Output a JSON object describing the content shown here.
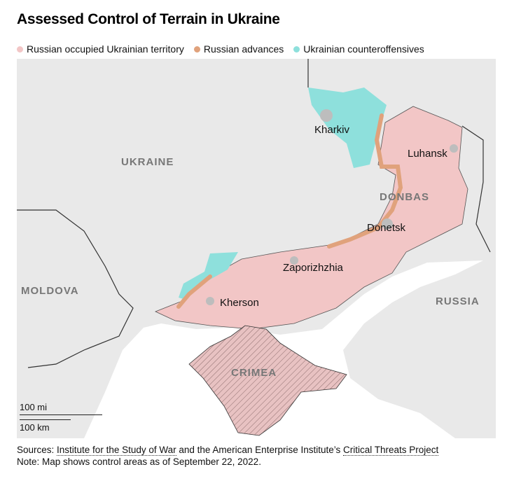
{
  "title": "Assessed Control of Terrain in Ukraine",
  "legend": [
    {
      "label": "Russian occupied Ukrainian territory",
      "color": "#f2c6c6"
    },
    {
      "label": "Russian advances",
      "color": "#e0a27c"
    },
    {
      "label": "Ukrainian counteroffensives",
      "color": "#8ee0dc"
    }
  ],
  "map": {
    "cities": {
      "kharkiv": "Kharkiv",
      "luhansk": "Luhansk",
      "donetsk": "Donetsk",
      "zaporizhzhia": "Zaporizhzhia",
      "kherson": "Kherson"
    },
    "regions": {
      "ukraine": "UKRAINE",
      "donbas": "DONBAS",
      "moldova": "MOLDOVA",
      "russia": "RUSSIA",
      "crimea": "CRIMEA"
    },
    "scale": {
      "miles": "100 mi",
      "km": "100 km"
    }
  },
  "footer": {
    "sources_prefix": "Sources: ",
    "source1": "Institute for the Study of War",
    "sources_mid": " and the American Enterprise Institute’s ",
    "source2": "Critical Threats Project",
    "note": "Note: Map shows control areas as of September 22, 2022."
  }
}
